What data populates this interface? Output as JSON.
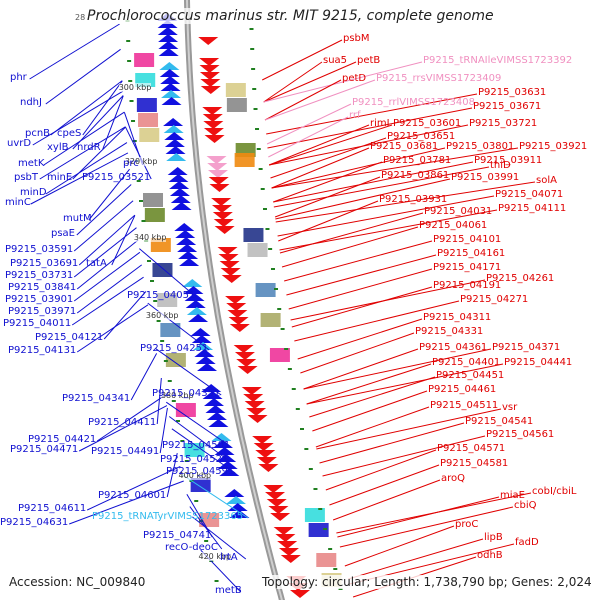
{
  "title": "Prochlorococcus marinus str. MIT 9215, complete genome",
  "title_tick": "28",
  "footer": {
    "accession": "Accession: NC_009840",
    "summary": "Topology: circular; Length: 1,738,790 bp; Genes: 2,024"
  },
  "colors": {
    "forward_gene": "#1010d0",
    "reverse_gene": "#e00000",
    "rna_forward": "#33bbee",
    "rna_reverse": "#f090c0",
    "backbone": "#8a8a8a",
    "tick_marks": "#208020"
  },
  "scale_ticks": [
    "300 kbp",
    "320 kbp",
    "340 kbp",
    "360 kbp",
    "380 kbp",
    "400 kbp",
    "420 kbp"
  ],
  "left_labels": [
    {
      "text": "phr",
      "color": "blue"
    },
    {
      "text": "ndhJ",
      "color": "blue"
    },
    {
      "text": "pcnB",
      "color": "blue"
    },
    {
      "text": "cpeS",
      "color": "blue"
    },
    {
      "text": "uvrD",
      "color": "blue"
    },
    {
      "text": "xylB",
      "color": "blue"
    },
    {
      "text": "nrdR",
      "color": "blue"
    },
    {
      "text": "metK",
      "color": "blue"
    },
    {
      "text": "prc",
      "color": "blue"
    },
    {
      "text": "psbT",
      "color": "blue"
    },
    {
      "text": "minE",
      "color": "blue"
    },
    {
      "text": "P9215_03521",
      "color": "blue"
    },
    {
      "text": "minD",
      "color": "blue"
    },
    {
      "text": "minC",
      "color": "blue"
    },
    {
      "text": "mutM",
      "color": "blue"
    },
    {
      "text": "psaE",
      "color": "blue"
    },
    {
      "text": "P9215_03591",
      "color": "blue"
    },
    {
      "text": "P9215_03691",
      "color": "blue"
    },
    {
      "text": "tatA",
      "color": "blue"
    },
    {
      "text": "P9215_03731",
      "color": "blue"
    },
    {
      "text": "P9215_03841",
      "color": "blue"
    },
    {
      "text": "P9215_03901",
      "color": "blue"
    },
    {
      "text": "P9215_04051",
      "color": "blue"
    },
    {
      "text": "P9215_03971",
      "color": "blue"
    },
    {
      "text": "P9215_04011",
      "color": "blue"
    },
    {
      "text": "P9215_04121",
      "color": "blue"
    },
    {
      "text": "P9215_04131",
      "color": "blue"
    },
    {
      "text": "P9215_04251",
      "color": "blue"
    },
    {
      "text": "P9215_04341",
      "color": "blue"
    },
    {
      "text": "P9215_04351",
      "color": "blue"
    },
    {
      "text": "P9215_04411",
      "color": "blue"
    },
    {
      "text": "P9215_04421",
      "color": "blue"
    },
    {
      "text": "P9215_04471",
      "color": "blue"
    },
    {
      "text": "P9215_04491",
      "color": "blue"
    },
    {
      "text": "P9215_04501",
      "color": "blue"
    },
    {
      "text": "P9215_04521",
      "color": "blue"
    },
    {
      "text": "P9215_04591",
      "color": "blue"
    },
    {
      "text": "P9215_04601",
      "color": "blue"
    },
    {
      "text": "P9215_04611",
      "color": "blue"
    },
    {
      "text": "P9215_tRNATyrVIMSS1723365",
      "color": "cyan"
    },
    {
      "text": "P9215_04631",
      "color": "blue"
    },
    {
      "text": "P9215_04741",
      "color": "blue"
    },
    {
      "text": "recO-deoC",
      "color": "blue"
    },
    {
      "text": "lrtA",
      "color": "blue"
    },
    {
      "text": "metB",
      "color": "blue"
    }
  ],
  "right_labels": [
    {
      "text": "psbM",
      "color": "red"
    },
    {
      "text": "sua5",
      "color": "red"
    },
    {
      "text": "petB",
      "color": "red"
    },
    {
      "text": "P9215_tRNAIleVIMSS1723392",
      "color": "pink"
    },
    {
      "text": "petD",
      "color": "red"
    },
    {
      "text": "P9215_rrsVIMSS1723409",
      "color": "pink"
    },
    {
      "text": "P9215_03631",
      "color": "red"
    },
    {
      "text": "P9215_rrlVIMSS1723408",
      "color": "pink"
    },
    {
      "text": "P9215_03671",
      "color": "red"
    },
    {
      "text": "rrf",
      "color": "pink"
    },
    {
      "text": "rimI",
      "color": "red"
    },
    {
      "text": "P9215_03601",
      "color": "red"
    },
    {
      "text": "P9215_03721",
      "color": "red"
    },
    {
      "text": "P9215_03651",
      "color": "red"
    },
    {
      "text": "P9215_03681",
      "color": "red"
    },
    {
      "text": "P9215_03801",
      "color": "red"
    },
    {
      "text": "P9215_03921",
      "color": "red"
    },
    {
      "text": "P9215_03781",
      "color": "red"
    },
    {
      "text": "P9215_03911",
      "color": "red"
    },
    {
      "text": "P9215_03861",
      "color": "red"
    },
    {
      "text": "thiD",
      "color": "red"
    },
    {
      "text": "P9215_03991",
      "color": "red"
    },
    {
      "text": "solA",
      "color": "red"
    },
    {
      "text": "P9215_03931",
      "color": "red"
    },
    {
      "text": "P9215_04071",
      "color": "red"
    },
    {
      "text": "P9215_04031",
      "color": "red"
    },
    {
      "text": "P9215_04111",
      "color": "red"
    },
    {
      "text": "P9215_04061",
      "color": "red"
    },
    {
      "text": "P9215_04101",
      "color": "red"
    },
    {
      "text": "P9215_04161",
      "color": "red"
    },
    {
      "text": "P9215_04171",
      "color": "red"
    },
    {
      "text": "P9215_04261",
      "color": "red"
    },
    {
      "text": "P9215_04191",
      "color": "red"
    },
    {
      "text": "P9215_04271",
      "color": "red"
    },
    {
      "text": "P9215_04311",
      "color": "red"
    },
    {
      "text": "P9215_04331",
      "color": "red"
    },
    {
      "text": "P9215_04361",
      "color": "red"
    },
    {
      "text": "P9215_04371",
      "color": "red"
    },
    {
      "text": "P9215_04441",
      "color": "red"
    },
    {
      "text": "P9215_04401",
      "color": "red"
    },
    {
      "text": "P9215_04451",
      "color": "red"
    },
    {
      "text": "P9215_04461",
      "color": "red"
    },
    {
      "text": "P9215_04511",
      "color": "red"
    },
    {
      "text": "vsr",
      "color": "red"
    },
    {
      "text": "P9215_04541",
      "color": "red"
    },
    {
      "text": "P9215_04561",
      "color": "red"
    },
    {
      "text": "P9215_04571",
      "color": "red"
    },
    {
      "text": "P9215_04581",
      "color": "red"
    },
    {
      "text": "aroQ",
      "color": "red"
    },
    {
      "text": "miaE",
      "color": "red"
    },
    {
      "text": "cobI/cbiL",
      "color": "red"
    },
    {
      "text": "cbiQ",
      "color": "red"
    },
    {
      "text": "proC",
      "color": "red"
    },
    {
      "text": "lipB",
      "color": "red"
    },
    {
      "text": "fadD",
      "color": "red"
    },
    {
      "text": "odhB",
      "color": "red"
    }
  ]
}
